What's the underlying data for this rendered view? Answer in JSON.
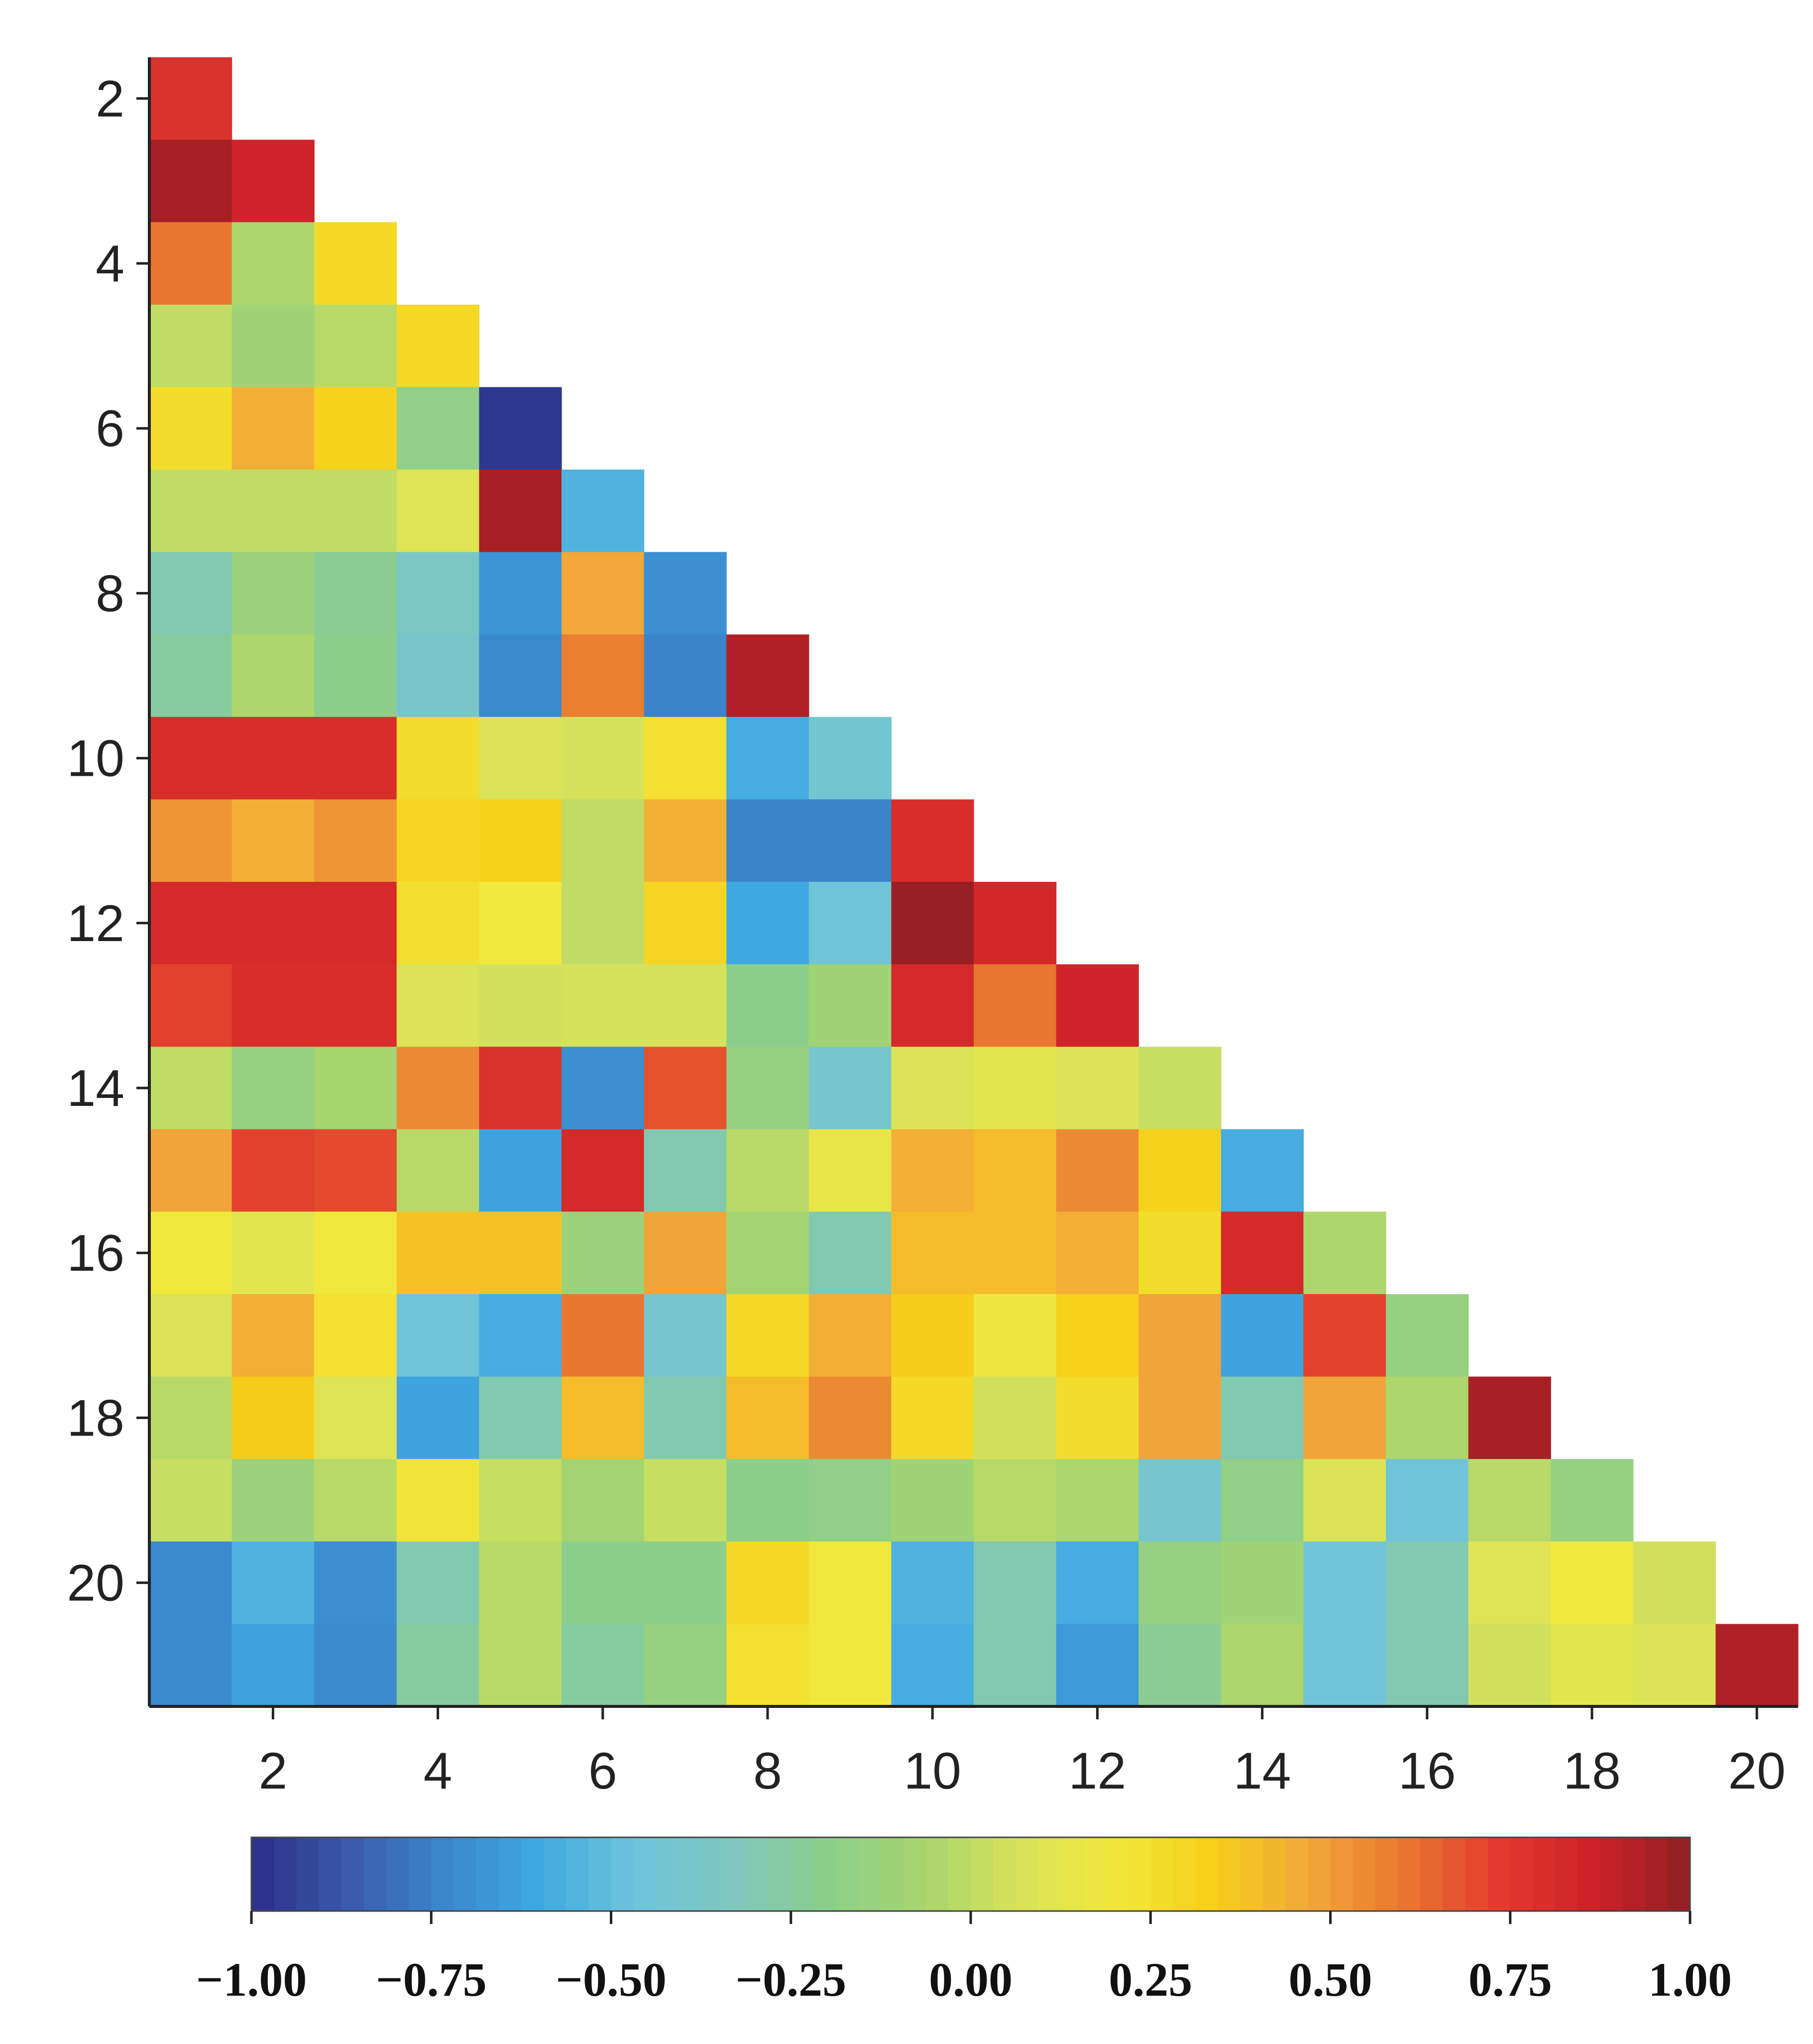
{
  "chart_data": {
    "type": "heatmap",
    "title": "",
    "xlabel": "",
    "ylabel": "",
    "layout": "lower-triangle",
    "rows": [
      2,
      3,
      4,
      5,
      6,
      7,
      8,
      9,
      10,
      11,
      12,
      13,
      14,
      15,
      16,
      17,
      18,
      19,
      20,
      21
    ],
    "cols": [
      1,
      2,
      3,
      4,
      5,
      6,
      7,
      8,
      9,
      10,
      11,
      12,
      13,
      14,
      15,
      16,
      17,
      18,
      19,
      20
    ],
    "x_ticks": [
      "2",
      "4",
      "6",
      "8",
      "10",
      "12",
      "14",
      "16",
      "18",
      "20"
    ],
    "y_ticks": [
      "2",
      "4",
      "6",
      "8",
      "10",
      "12",
      "14",
      "16",
      "18",
      "20"
    ],
    "values": [
      [
        0.78
      ],
      [
        0.95,
        0.85
      ],
      [
        0.6,
        -0.05,
        0.28
      ],
      [
        0.0,
        -0.1,
        -0.02,
        0.28
      ],
      [
        0.26,
        0.45,
        0.32,
        -0.18,
        -0.97
      ],
      [
        0.0,
        0.0,
        0.0,
        0.1,
        0.95,
        -0.55
      ],
      [
        -0.3,
        -0.12,
        -0.22,
        -0.35,
        -0.68,
        0.47,
        -0.7
      ],
      [
        -0.25,
        -0.05,
        -0.2,
        -0.38,
        -0.72,
        0.58,
        -0.74,
        0.93
      ],
      [
        0.8,
        0.8,
        0.8,
        0.26,
        0.08,
        0.06,
        0.24,
        -0.58,
        -0.42
      ],
      [
        0.52,
        0.45,
        0.52,
        0.3,
        0.32,
        0.0,
        0.44,
        -0.74,
        -0.74,
        0.8
      ],
      [
        0.82,
        0.82,
        0.82,
        0.25,
        0.2,
        0.0,
        0.3,
        -0.6,
        -0.45,
        0.98,
        0.83
      ],
      [
        0.72,
        0.8,
        0.8,
        0.08,
        0.05,
        0.06,
        0.06,
        -0.2,
        -0.1,
        0.82,
        0.6,
        0.85
      ],
      [
        0.0,
        -0.15,
        -0.07,
        0.55,
        0.78,
        -0.7,
        0.68,
        -0.15,
        -0.4,
        0.08,
        0.12,
        0.08,
        0.02
      ],
      [
        0.48,
        0.72,
        0.7,
        -0.02,
        -0.62,
        0.82,
        -0.3,
        -0.02,
        0.15,
        0.45,
        0.4,
        0.55,
        0.32,
        -0.58
      ],
      [
        0.2,
        0.12,
        0.2,
        0.38,
        0.38,
        -0.12,
        0.48,
        -0.08,
        -0.3,
        0.4,
        0.4,
        0.45,
        0.26,
        0.82,
        -0.05
      ],
      [
        0.08,
        0.45,
        0.24,
        -0.45,
        -0.58,
        0.6,
        -0.4,
        0.28,
        0.45,
        0.34,
        0.18,
        0.33,
        0.48,
        -0.62,
        0.72,
        -0.15
      ],
      [
        -0.02,
        0.34,
        0.1,
        -0.62,
        -0.3,
        0.4,
        -0.3,
        0.4,
        0.55,
        0.28,
        0.05,
        0.26,
        0.48,
        -0.3,
        0.48,
        -0.05,
        0.95
      ],
      [
        0.02,
        -0.12,
        -0.02,
        0.22,
        0.02,
        -0.08,
        0.02,
        -0.2,
        -0.18,
        -0.1,
        -0.02,
        -0.05,
        -0.4,
        -0.18,
        0.08,
        -0.45,
        -0.02,
        -0.15
      ],
      [
        -0.72,
        -0.55,
        -0.7,
        -0.3,
        -0.02,
        -0.2,
        -0.2,
        0.28,
        0.2,
        -0.55,
        -0.3,
        -0.58,
        -0.15,
        -0.1,
        -0.45,
        -0.3,
        0.1,
        0.2,
        0.05
      ],
      [
        -0.72,
        -0.62,
        -0.72,
        -0.25,
        -0.02,
        -0.25,
        -0.15,
        0.24,
        0.2,
        -0.58,
        -0.3,
        -0.66,
        -0.22,
        -0.05,
        -0.45,
        -0.3,
        0.05,
        0.12,
        0.08,
        0.93
      ]
    ],
    "colorbar": {
      "min": -1.0,
      "max": 1.0,
      "ticks": [
        "−1.00",
        "−0.75",
        "−0.50",
        "−0.25",
        "0.00",
        "0.25",
        "0.50",
        "0.75",
        "1.00"
      ],
      "tick_values": [
        -1.0,
        -0.75,
        -0.5,
        -0.25,
        0.0,
        0.25,
        0.5,
        0.75,
        1.0
      ]
    },
    "colormap": [
      "#2b2e86",
      "#3a5aa8",
      "#3b86cc",
      "#3ea9e0",
      "#6ec4dc",
      "#7ec7bf",
      "#8ccf8c",
      "#a7d46e",
      "#d8e35a",
      "#f1e83c",
      "#f6cf18",
      "#f2a93a",
      "#e9772f",
      "#e23b2e",
      "#cc2128",
      "#8f2023"
    ]
  }
}
